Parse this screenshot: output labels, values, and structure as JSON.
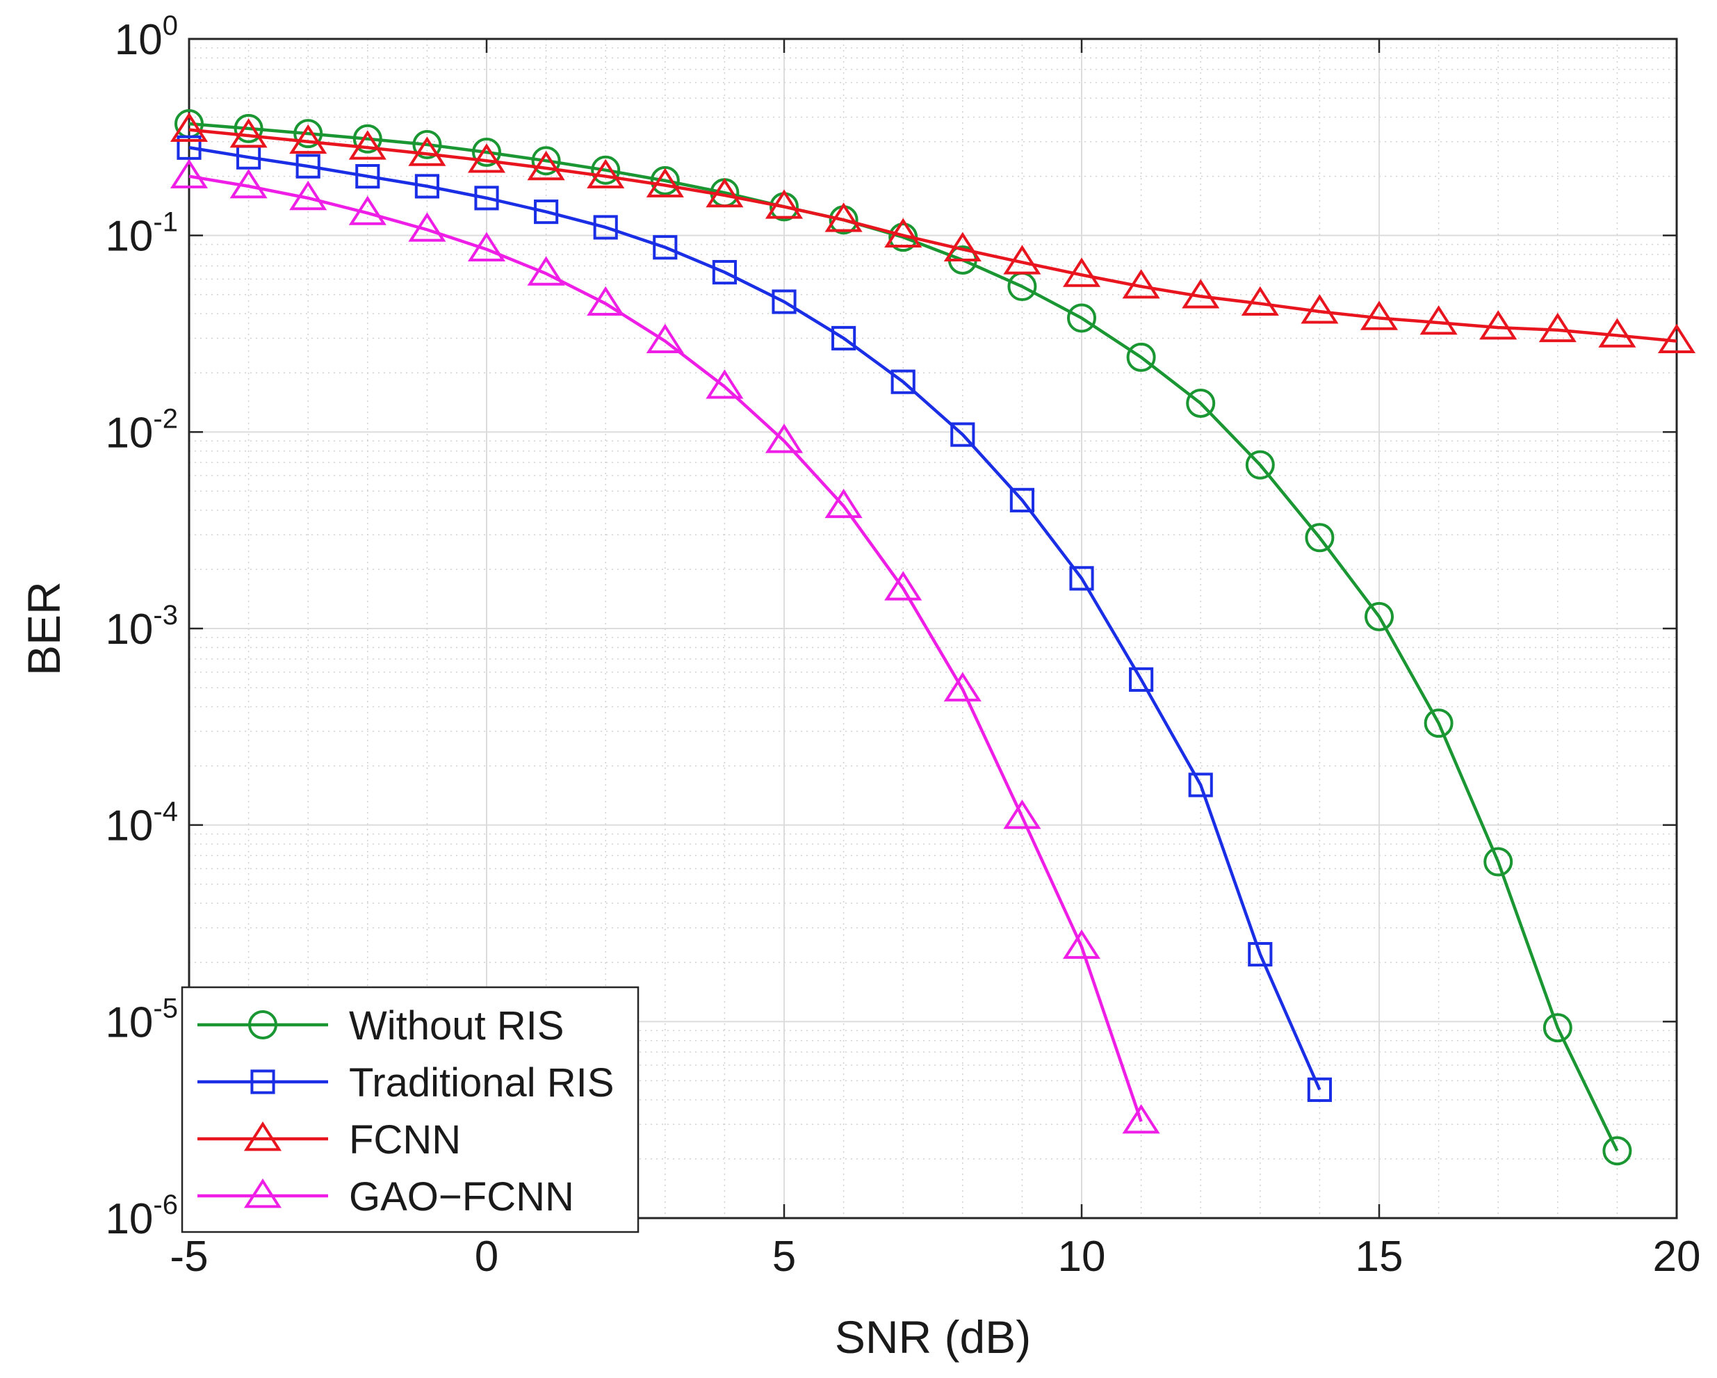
{
  "chart_data": {
    "type": "line",
    "title": "",
    "xlabel": "SNR (dB)",
    "ylabel": "BER",
    "yscale": "log",
    "xlim": [
      -5,
      20
    ],
    "ylim": [
      1e-06,
      1
    ],
    "grid": true,
    "legend_position": "bottom-left",
    "xticks": [
      "-5",
      "0",
      "5",
      "10",
      "15",
      "20"
    ],
    "yticks": [
      {
        "base": "10",
        "exp": "0"
      },
      {
        "base": "10",
        "exp": "-1"
      },
      {
        "base": "10",
        "exp": "-2"
      },
      {
        "base": "10",
        "exp": "-3"
      },
      {
        "base": "10",
        "exp": "-4"
      },
      {
        "base": "10",
        "exp": "-5"
      },
      {
        "base": "10",
        "exp": "-6"
      }
    ],
    "series": [
      {
        "name": "Without RIS",
        "color": "#1a9632",
        "marker": "circle",
        "x": [
          -5,
          -4,
          -3,
          -2,
          -1,
          0,
          1,
          2,
          3,
          4,
          5,
          6,
          7,
          8,
          9,
          10,
          11,
          12,
          13,
          14,
          15,
          16,
          17,
          18,
          19
        ],
        "y": [
          0.37,
          0.35,
          0.33,
          0.31,
          0.29,
          0.265,
          0.24,
          0.215,
          0.19,
          0.165,
          0.14,
          0.12,
          0.098,
          0.075,
          0.055,
          0.038,
          0.024,
          0.014,
          0.0068,
          0.0029,
          0.00115,
          0.00033,
          6.5e-05,
          9.3e-06,
          2.2e-06
        ]
      },
      {
        "name": "Traditional RIS",
        "color": "#1a2ee6",
        "marker": "square",
        "x": [
          -5,
          -4,
          -3,
          -2,
          -1,
          0,
          1,
          2,
          3,
          4,
          5,
          6,
          7,
          8,
          9,
          10,
          11,
          12,
          13,
          14
        ],
        "y": [
          0.28,
          0.25,
          0.225,
          0.2,
          0.178,
          0.155,
          0.132,
          0.11,
          0.087,
          0.065,
          0.046,
          0.03,
          0.018,
          0.0097,
          0.0045,
          0.0018,
          0.00055,
          0.00016,
          2.2e-05,
          4.5e-06
        ]
      },
      {
        "name": "FCNN",
        "color": "#e8141e",
        "marker": "triangle",
        "x": [
          -5,
          -4,
          -3,
          -2,
          -1,
          0,
          1,
          2,
          3,
          4,
          5,
          6,
          7,
          8,
          9,
          10,
          11,
          12,
          13,
          14,
          15,
          16,
          17,
          18,
          19,
          20
        ],
        "y": [
          0.345,
          0.322,
          0.3,
          0.28,
          0.26,
          0.24,
          0.22,
          0.2,
          0.18,
          0.16,
          0.14,
          0.12,
          0.1,
          0.085,
          0.073,
          0.063,
          0.055,
          0.049,
          0.045,
          0.041,
          0.038,
          0.036,
          0.034,
          0.033,
          0.031,
          0.029
        ]
      },
      {
        "name": "GAO−FCNN",
        "color": "#ee1ee6",
        "marker": "triangle",
        "x": [
          -5,
          -4,
          -3,
          -2,
          -1,
          0,
          1,
          2,
          3,
          4,
          5,
          6,
          7,
          8,
          9,
          10,
          11
        ],
        "y": [
          0.2,
          0.178,
          0.155,
          0.13,
          0.107,
          0.085,
          0.064,
          0.045,
          0.029,
          0.017,
          0.009,
          0.0042,
          0.0016,
          0.00049,
          0.00011,
          2.4e-05,
          3.1e-06
        ]
      }
    ]
  }
}
